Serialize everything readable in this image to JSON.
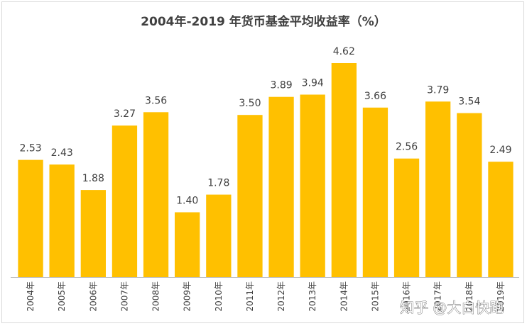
{
  "watermark": "知乎 @大白快跑",
  "chart_data": {
    "type": "bar",
    "title": "2004年-2019 年货币基金平均收益率（%）",
    "xlabel": "",
    "ylabel": "",
    "categories": [
      "2004年",
      "2005年",
      "2006年",
      "2007年",
      "2008年",
      "2009年",
      "2010年",
      "2011年",
      "2012年",
      "2013年",
      "2014年",
      "2015年",
      "2016年",
      "2017年",
      "2018年",
      "2019年"
    ],
    "values": [
      2.53,
      2.43,
      1.88,
      3.27,
      3.56,
      1.4,
      1.78,
      3.5,
      3.89,
      3.94,
      4.62,
      3.66,
      2.56,
      3.79,
      3.54,
      2.49
    ],
    "value_labels": [
      "2.53",
      "2.43",
      "1.88",
      "3.27",
      "3.56",
      "1.40",
      "1.78",
      "3.50",
      "3.89",
      "3.94",
      "4.62",
      "3.66",
      "2.56",
      "3.79",
      "3.54",
      "2.49"
    ],
    "ylim": [
      0,
      5
    ],
    "bar_color": "#FFC000",
    "axis_color": "#bfbfbf",
    "grid": false,
    "legend": "none"
  }
}
